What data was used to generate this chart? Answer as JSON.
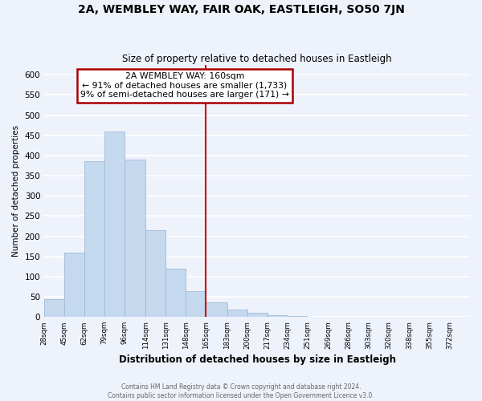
{
  "title": "2A, WEMBLEY WAY, FAIR OAK, EASTLEIGH, SO50 7JN",
  "subtitle": "Size of property relative to detached houses in Eastleigh",
  "xlabel": "Distribution of detached houses by size in Eastleigh",
  "ylabel": "Number of detached properties",
  "bar_color": "#c5d9ee",
  "bar_edge_color": "#a0b8d8",
  "background_color": "#eef2fb",
  "plot_bg_color": "#eef2fb",
  "grid_color": "white",
  "vline_x": 165,
  "vline_color": "#cc0000",
  "bin_edges": [
    28,
    45,
    62,
    79,
    96,
    114,
    131,
    148,
    165,
    183,
    200,
    217,
    234,
    251,
    269,
    286,
    303,
    320,
    338,
    355,
    372,
    389
  ],
  "categories": [
    "28sqm",
    "45sqm",
    "62sqm",
    "79sqm",
    "96sqm",
    "114sqm",
    "131sqm",
    "148sqm",
    "165sqm",
    "183sqm",
    "200sqm",
    "217sqm",
    "234sqm",
    "251sqm",
    "269sqm",
    "286sqm",
    "303sqm",
    "320sqm",
    "338sqm",
    "355sqm",
    "372sqm"
  ],
  "values": [
    45,
    160,
    385,
    460,
    390,
    215,
    120,
    65,
    37,
    18,
    10,
    5,
    2,
    0,
    0,
    0,
    0,
    0,
    0,
    0,
    0
  ],
  "ylim": [
    0,
    625
  ],
  "yticks": [
    0,
    50,
    100,
    150,
    200,
    250,
    300,
    350,
    400,
    450,
    500,
    550,
    600
  ],
  "annotation_title": "2A WEMBLEY WAY: 160sqm",
  "annotation_line1": "← 91% of detached houses are smaller (1,733)",
  "annotation_line2": "9% of semi-detached houses are larger (171) →",
  "annotation_box_color": "white",
  "annotation_box_edge": "#aa0000",
  "footer1": "Contains HM Land Registry data © Crown copyright and database right 2024.",
  "footer2": "Contains public sector information licensed under the Open Government Licence v3.0."
}
